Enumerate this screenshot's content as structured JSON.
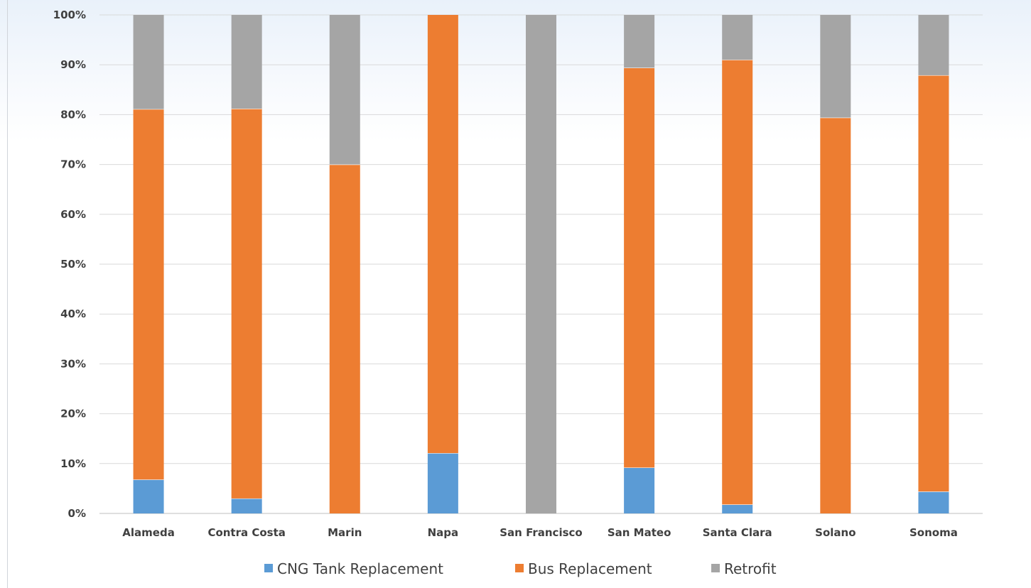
{
  "chart_data": {
    "type": "bar",
    "stacked": true,
    "categories": [
      "Alameda",
      "Contra Costa",
      "Marin",
      "Napa",
      "San Francisco",
      "San Mateo",
      "Santa Clara",
      "Solano",
      "Sonoma"
    ],
    "series": [
      {
        "name": "CNG Tank Replacement",
        "color": "#5b9bd5",
        "values": [
          6.8,
          3.0,
          0,
          12.1,
          0,
          9.2,
          1.8,
          0,
          4.4
        ]
      },
      {
        "name": "Bus Replacement",
        "color": "#ed7d31",
        "values": [
          74.3,
          78.2,
          70.0,
          87.9,
          0,
          80.2,
          89.2,
          79.4,
          83.5
        ]
      },
      {
        "name": "Retrofit",
        "color": "#a5a5a5",
        "values": [
          18.9,
          18.8,
          30.0,
          0,
          100,
          10.6,
          9.0,
          20.6,
          12.1
        ]
      }
    ],
    "ylim": [
      0,
      100
    ],
    "yticks": [
      "0%",
      "10%",
      "20%",
      "30%",
      "40%",
      "50%",
      "60%",
      "70%",
      "80%",
      "90%",
      "100%"
    ],
    "title": "",
    "xlabel": "",
    "ylabel": "",
    "grid": true,
    "legend_position": "bottom"
  }
}
